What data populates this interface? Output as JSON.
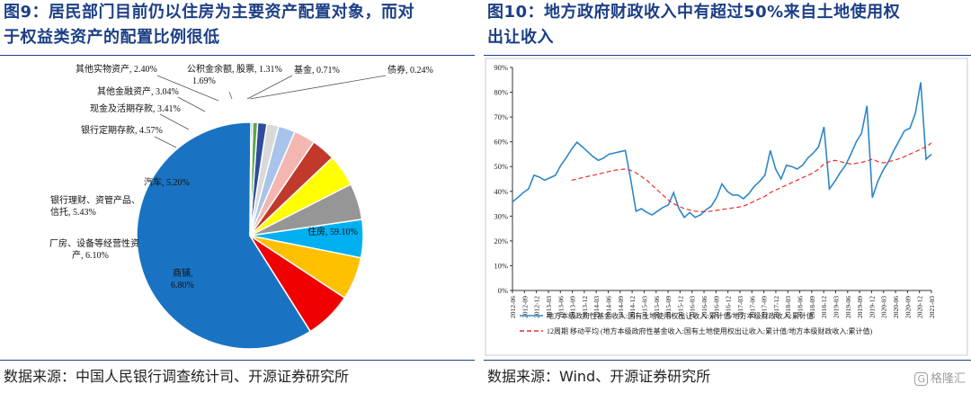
{
  "left": {
    "title_line1": "图9：居民部门目前仍以住房为主要资产配置对象，而对",
    "title_line2": "于权益类资产的配置比例很低",
    "source": "数据来源：中国人民银行调查统计司、开源证券研究所"
  },
  "right": {
    "title_line1": "图10：地方政府财政收入中有超过50%来自土地使用权",
    "title_line2": "出让收入",
    "source": "数据来源：Wind、开源证券研究所"
  },
  "watermark": {
    "mark": "G",
    "text": "格隆汇"
  },
  "chart_data": [
    {
      "type": "pie",
      "title": "",
      "slices": [
        {
          "name": "住房",
          "value": 59.1,
          "color": "#1a73c2",
          "label": "住房, 59.10%"
        },
        {
          "name": "商铺",
          "value": 6.8,
          "color": "#f00000",
          "label": "商铺, 6.80%"
        },
        {
          "name": "厂房、设备等经营性资产",
          "value": 6.1,
          "color": "#ffc000",
          "label": "厂房、设备等经营性资产, 6.10%"
        },
        {
          "name": "银行理财、资管产品、信托",
          "value": 5.43,
          "color": "#00b0f0",
          "label": "银行理财、资管产品、信托, 5.43%"
        },
        {
          "name": "汽车",
          "value": 5.2,
          "color": "#969696",
          "label": "汽车, 5.20%"
        },
        {
          "name": "银行定期存款",
          "value": 4.57,
          "color": "#ffff00",
          "label": "银行定期存款, 4.57%"
        },
        {
          "name": "现金及活期存款",
          "value": 3.41,
          "color": "#c0392b",
          "label": "现金及活期存款, 3.41%"
        },
        {
          "name": "其他金融资产",
          "value": 3.04,
          "color": "#f4b6b0",
          "label": "其他金融资产, 3.04%"
        },
        {
          "name": "其他实物资产",
          "value": 2.4,
          "color": "#a9c4eb",
          "label": "其他实物资产, 2.40%"
        },
        {
          "name": "公积金余额",
          "value": 1.69,
          "color": "#d9d9d9",
          "label": "公积金余额, 1.69%"
        },
        {
          "name": "股票",
          "value": 1.31,
          "color": "#2f4d9c",
          "label": "股票, 1.31%"
        },
        {
          "name": "基金",
          "value": 0.71,
          "color": "#5ba84a",
          "label": "基金, 0.71%"
        },
        {
          "name": "债券",
          "value": 0.24,
          "color": "#1e7a3e",
          "label": "债券, 0.24%"
        }
      ]
    },
    {
      "type": "line",
      "title": "",
      "ylim": [
        0,
        90
      ],
      "yticks": [
        "0%",
        "10%",
        "20%",
        "30%",
        "40%",
        "50%",
        "60%",
        "70%",
        "80%",
        "90%"
      ],
      "xticks": [
        "2012-06",
        "2012-09",
        "2012-12",
        "2013-03",
        "2013-06",
        "2013-09",
        "2013-12",
        "2014-03",
        "2014-06",
        "2014-09",
        "2014-12",
        "2015-03",
        "2015-06",
        "2015-09",
        "2015-12",
        "2016-03",
        "2016-06",
        "2016-09",
        "2016-12",
        "2017-03",
        "2017-06",
        "2017-09",
        "2017-12",
        "2018-03",
        "2018-06",
        "2018-09",
        "2018-12",
        "2019-03",
        "2019-06",
        "2019-09",
        "2019-12",
        "2020-03",
        "2020-06",
        "2020-09",
        "2020-12",
        "2021-03"
      ],
      "series": [
        {
          "name": "地方本级政府性基金收入:国有土地使用权出让收入:累计值/地方本级财政收入:累计值",
          "color": "#2e86c8",
          "dash": false,
          "values": [
            35.8,
            37.5,
            39.5,
            41.0,
            46.5,
            45.8,
            44.5,
            45.5,
            46.5,
            50.5,
            53.5,
            57.0,
            59.8,
            58.0,
            56.0,
            54.0,
            52.5,
            53.5,
            55.0,
            55.5,
            56.0,
            56.5,
            45.0,
            32.0,
            33.0,
            31.5,
            30.5,
            32.0,
            33.5,
            34.5,
            39.5,
            33.0,
            29.5,
            31.5,
            29.5,
            30.5,
            32.5,
            34.0,
            37.5,
            43.0,
            40.0,
            38.5,
            38.5,
            37.0,
            39.0,
            42.0,
            44.0,
            46.5,
            56.5,
            49.0,
            45.0,
            50.5,
            50.0,
            49.0,
            50.5,
            53.5,
            55.5,
            58.0,
            66.0,
            41.0,
            44.0,
            47.5,
            50.5,
            55.0,
            60.0,
            63.5,
            74.5,
            37.5,
            44.0,
            48.5,
            52.0,
            56.5,
            60.5,
            64.5,
            65.5,
            71.5,
            84.0,
            53.0,
            55.0
          ]
        },
        {
          "name": "12周期 移动平均 (地方本级政府性基金收入:国有土地使用权出让收入:累计值/地方本级财政收入:累计值)",
          "color": "#e8302a",
          "dash": true,
          "values": [
            null,
            null,
            null,
            null,
            null,
            null,
            null,
            null,
            null,
            null,
            null,
            44.5,
            45.0,
            45.5,
            46.0,
            46.5,
            47.0,
            47.5,
            48.0,
            48.5,
            48.8,
            49.0,
            48.5,
            47.5,
            46.0,
            44.5,
            42.5,
            40.5,
            38.5,
            36.5,
            35.0,
            34.0,
            33.0,
            32.5,
            32.0,
            31.8,
            31.8,
            32.0,
            32.3,
            32.7,
            33.0,
            33.3,
            33.6,
            34.0,
            35.0,
            36.0,
            37.0,
            38.0,
            39.5,
            40.5,
            41.5,
            42.5,
            43.5,
            44.5,
            45.5,
            46.5,
            47.5,
            49.0,
            51.0,
            52.0,
            52.5,
            52.0,
            51.5,
            51.0,
            51.3,
            51.7,
            52.3,
            53.0,
            52.0,
            51.5,
            52.0,
            52.5,
            53.2,
            54.0,
            55.0,
            56.0,
            57.0,
            58.0,
            59.5
          ]
        }
      ]
    }
  ]
}
